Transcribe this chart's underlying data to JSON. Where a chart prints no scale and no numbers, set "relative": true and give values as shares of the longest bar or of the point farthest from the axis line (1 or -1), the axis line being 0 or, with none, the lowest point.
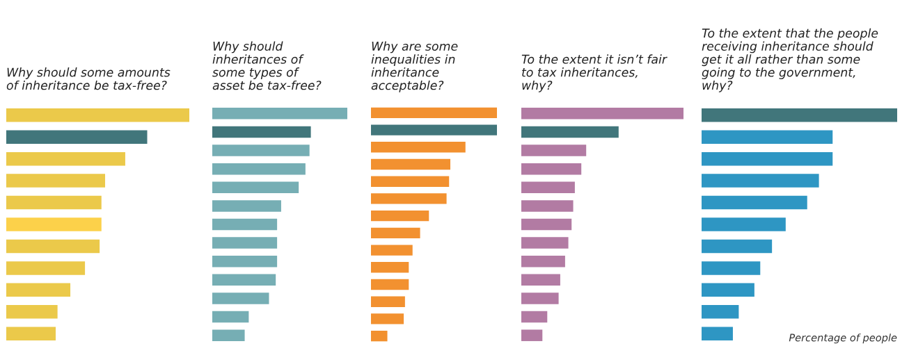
{
  "chart_data": [
    {
      "type": "bar",
      "orientation": "horizontal",
      "relative": true,
      "title": "Why should some amounts\nof inheritance be tax-free?",
      "categories": [
        null,
        null,
        null,
        null,
        null,
        null,
        null,
        null,
        null,
        null,
        null
      ],
      "values": [
        1,
        0.77,
        0.65,
        0.54,
        0.52,
        0.52,
        0.51,
        0.43,
        0.35,
        0.28,
        0.27
      ],
      "colors": [
        "#ebc94a",
        "#41767b",
        "#ebc94a",
        "#ebc94a",
        "#ebc94a",
        "#fcd14a",
        "#ebc94a",
        "#ebc94a",
        "#ebc94a",
        "#ebc94a",
        "#ebc94a"
      ],
      "grid": false,
      "legend": false
    },
    {
      "type": "bar",
      "orientation": "horizontal",
      "relative": true,
      "title": "Why should\ninheritances of\nsome types of\nasset be tax-free?",
      "categories": [
        null,
        null,
        null,
        null,
        null,
        null,
        null,
        null,
        null,
        null,
        null,
        null,
        null
      ],
      "values": [
        1,
        0.73,
        0.72,
        0.69,
        0.64,
        0.51,
        0.48,
        0.48,
        0.48,
        0.47,
        0.42,
        0.27,
        0.24
      ],
      "colors": [
        "#76aeb4",
        "#41767b",
        "#76aeb4",
        "#76aeb4",
        "#76aeb4",
        "#76aeb4",
        "#76aeb4",
        "#76aeb4",
        "#76aeb4",
        "#76aeb4",
        "#76aeb4",
        "#76aeb4",
        "#76aeb4"
      ],
      "grid": false,
      "legend": false
    },
    {
      "type": "bar",
      "orientation": "horizontal",
      "relative": true,
      "title": "Why are some\ninequalities in\ninheritance\nacceptable?",
      "categories": [
        null,
        null,
        null,
        null,
        null,
        null,
        null,
        null,
        null,
        null,
        null,
        null,
        null,
        null
      ],
      "values": [
        1,
        1,
        0.75,
        0.63,
        0.62,
        0.6,
        0.46,
        0.39,
        0.33,
        0.3,
        0.3,
        0.27,
        0.26,
        0.13
      ],
      "colors": [
        "#f29130",
        "#41767b",
        "#f29130",
        "#f29130",
        "#f29130",
        "#f29130",
        "#f29130",
        "#f29130",
        "#f29130",
        "#f29130",
        "#f29130",
        "#f29130",
        "#f29130",
        "#f29130"
      ],
      "grid": false,
      "legend": false
    },
    {
      "type": "bar",
      "orientation": "horizontal",
      "relative": true,
      "title": "To the extent it isn’t fair\nto tax inheritances,\nwhy?",
      "categories": [
        null,
        null,
        null,
        null,
        null,
        null,
        null,
        null,
        null,
        null,
        null,
        null,
        null
      ],
      "values": [
        1,
        0.6,
        0.4,
        0.37,
        0.33,
        0.32,
        0.31,
        0.29,
        0.27,
        0.24,
        0.23,
        0.16,
        0.13
      ],
      "colors": [
        "#b27ba3",
        "#41767b",
        "#b27ba3",
        "#b27ba3",
        "#b27ba3",
        "#b27ba3",
        "#b27ba3",
        "#b27ba3",
        "#b27ba3",
        "#b27ba3",
        "#b27ba3",
        "#b27ba3",
        "#b27ba3"
      ],
      "grid": false,
      "legend": false
    },
    {
      "type": "bar",
      "orientation": "horizontal",
      "relative": true,
      "title": "To the extent that the people\nreceiving inheritance should\nget it all rather than some\ngoing to the government,\nwhy?",
      "categories": [
        null,
        null,
        null,
        null,
        null,
        null,
        null,
        null,
        null,
        null,
        null
      ],
      "values": [
        1,
        0.67,
        0.67,
        0.6,
        0.54,
        0.43,
        0.36,
        0.3,
        0.27,
        0.19,
        0.16
      ],
      "colors": [
        "#41767b",
        "#2e96c3",
        "#2e96c3",
        "#2e96c3",
        "#2e96c3",
        "#2e96c3",
        "#2e96c3",
        "#2e96c3",
        "#2e96c3",
        "#2e96c3",
        "#2e96c3"
      ],
      "grid": false,
      "legend": false,
      "annotations": [
        "Percentage of people"
      ]
    }
  ]
}
